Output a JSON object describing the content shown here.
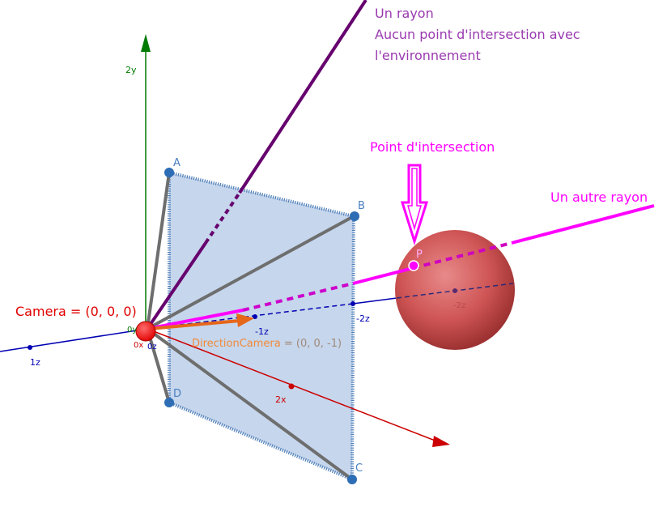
{
  "annotations": {
    "ray_title": "Un rayon",
    "ray_line2": "Aucun point d'intersection avec",
    "ray_line3": "l'environnement",
    "intersection": "Point d'intersection",
    "other_ray": "Un autre rayon",
    "camera": "Camera = (0, 0, 0)",
    "direction_name": "DirectionCamera",
    "direction_value": " = (0, 0, -1)"
  },
  "points": {
    "a": "A",
    "b": "B",
    "c": "C",
    "d": "D",
    "p": "P"
  },
  "axis_labels": {
    "y2": "2y",
    "y0": "0y",
    "x0": "0x",
    "z0": "0z",
    "z1": "1z",
    "zm1": "-1z",
    "zm2": "-2z",
    "zm2_sphere": "-2z",
    "x2": "2x"
  },
  "colors": {
    "ray": "#66006e",
    "other_ray": "#ff00ff",
    "camera": "#ff0000",
    "direction": "#e6661a",
    "plane_fill": "#c6d6ec",
    "point": "#2d6db5",
    "x_axis": "#cc0000",
    "y_axis": "#007a00",
    "z_axis": "#0000b3",
    "sphere": "#d05a5a"
  }
}
